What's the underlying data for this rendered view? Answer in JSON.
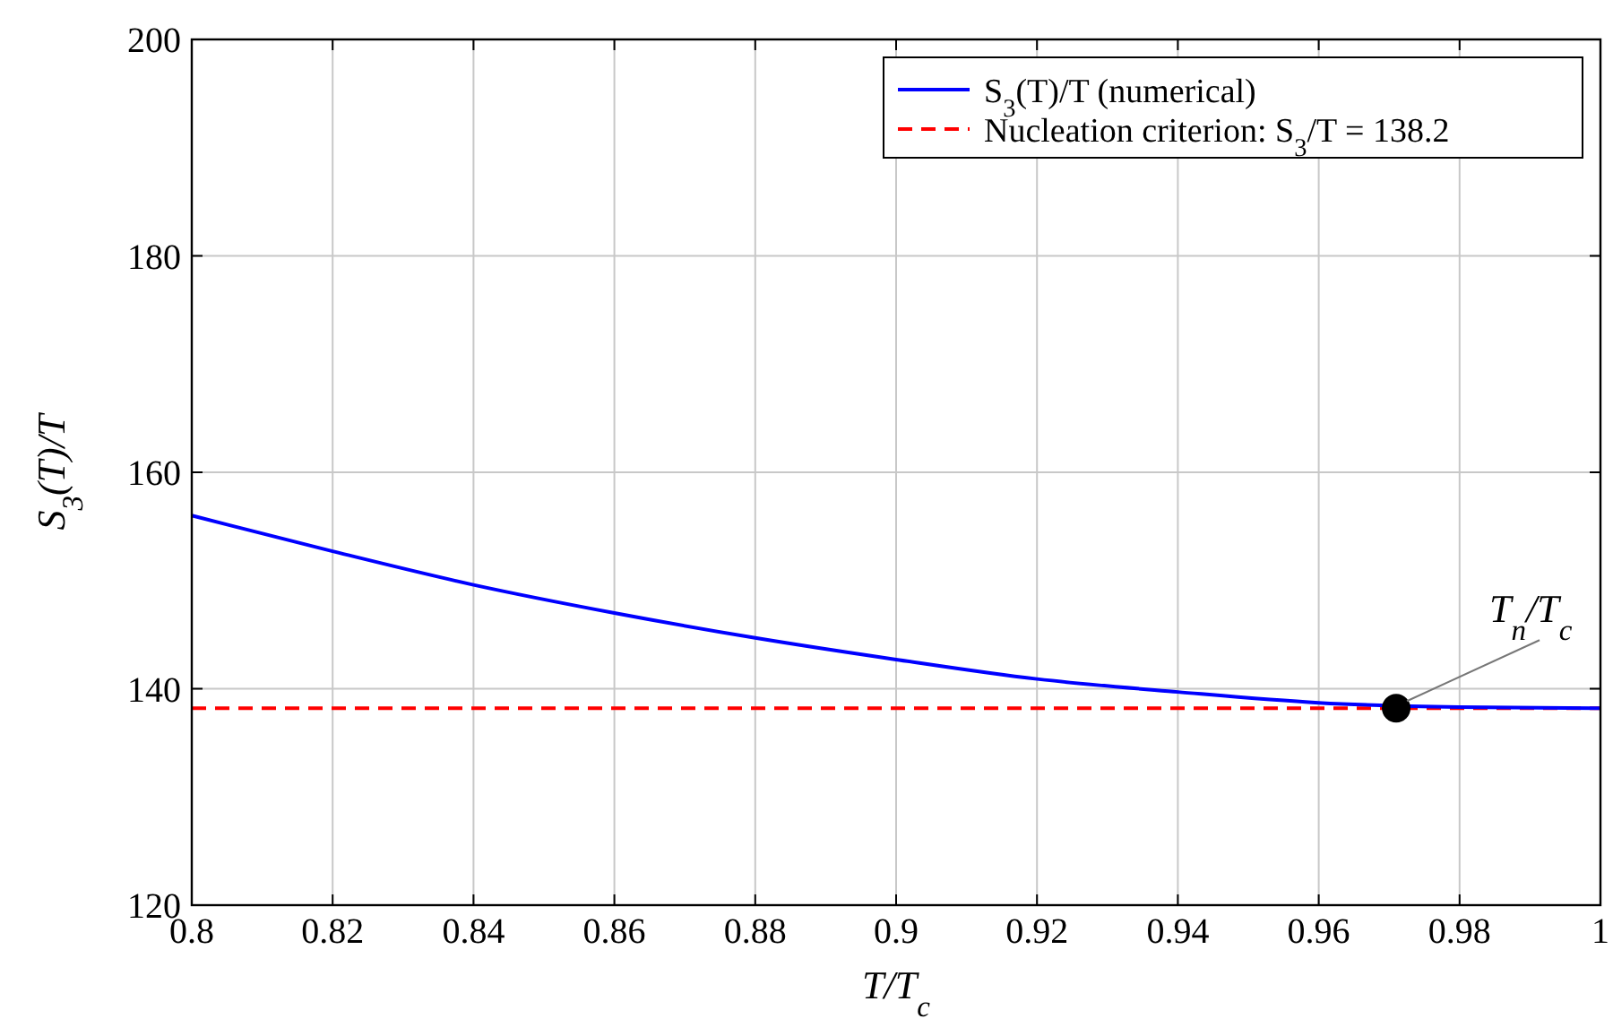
{
  "chart_data": {
    "type": "line",
    "xlabel": "T/T$_{c}$",
    "ylabel": "S$_{3}$(T)/T",
    "xlim": [
      0.8,
      1
    ],
    "xticks": [
      0.8,
      0.82,
      0.84,
      0.86,
      0.88,
      0.9,
      0.92,
      0.94,
      0.96,
      0.98,
      1
    ],
    "ylim": [
      120,
      200
    ],
    "yticks": [
      120,
      140,
      160,
      180,
      200
    ],
    "grid": true,
    "legend": "top right",
    "series": [
      {
        "name": "S$_{3}$(T)/T (numerical)",
        "color": "#0000ff",
        "x": [
          0.8,
          0.82,
          0.84,
          0.86,
          0.88,
          0.9,
          0.92,
          0.94,
          0.96,
          0.98,
          1
        ],
        "values": [
          156.0,
          152.7,
          149.6,
          147.0,
          144.7,
          142.7,
          140.9,
          139.7,
          138.7,
          138.3,
          138.2
        ]
      },
      {
        "type": "scatter",
        "color": "#000000",
        "marker": "circle",
        "x": [
          0.971
        ],
        "values": [
          138.2
        ]
      }
    ],
    "ref_lines": [
      {
        "axis": "y",
        "value": 138.2,
        "label": "Nucleation criterion: S$_{3}$/T = 138.2",
        "color": "#ff0000",
        "line_style": "dashed"
      }
    ],
    "annotations": [
      {
        "text": "T$_{n}$/T$_{c}$",
        "x": 0.971,
        "y": 138.2
      }
    ]
  }
}
